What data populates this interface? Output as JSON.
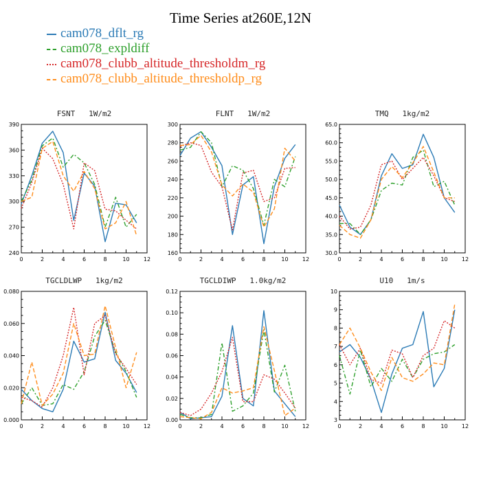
{
  "figure": {
    "title": "Time Series at260E,12N",
    "colors": {
      "series0": "#2a7ab5",
      "series1": "#2ea02c",
      "series2": "#d62728",
      "series3": "#ff8c1a"
    }
  },
  "legend": {
    "items": [
      "cam078_dflt_rg",
      "cam078_expldiff",
      "cam078_clubb_altitude_thresholdm_rg",
      "cam078_clubb_altitude_thresholdp_rg"
    ]
  },
  "chart_data": [
    {
      "type": "line",
      "title": "FSNT   1W/m2",
      "x": [
        0,
        1,
        2,
        3,
        4,
        5,
        6,
        7,
        8,
        9,
        10,
        11
      ],
      "xlim": [
        0,
        12
      ],
      "xticks": [
        "0",
        "2",
        "4",
        "6",
        "8",
        "10",
        "12"
      ],
      "ylim": [
        240,
        390
      ],
      "yticks": [
        "240",
        "270",
        "300",
        "330",
        "360",
        "390"
      ],
      "series": [
        {
          "name": "cam078_dflt_rg",
          "values": [
            297,
            330,
            368,
            382,
            357,
            278,
            333,
            318,
            253,
            298,
            296,
            275
          ]
        },
        {
          "name": "cam078_expldiff",
          "values": [
            300,
            325,
            365,
            374,
            340,
            355,
            345,
            320,
            270,
            305,
            270,
            285
          ]
        },
        {
          "name": "cam078_clubb_altitude_thresholdm_rg",
          "values": [
            292,
            322,
            362,
            350,
            320,
            268,
            345,
            336,
            291,
            289,
            278,
            268
          ]
        },
        {
          "name": "cam078_clubb_altitude_thresholdp_rg",
          "values": [
            300,
            305,
            362,
            370,
            330,
            312,
            335,
            315,
            268,
            275,
            300,
            260
          ]
        }
      ]
    },
    {
      "type": "line",
      "title": "FLNT   1W/m2",
      "x": [
        0,
        1,
        2,
        3,
        4,
        5,
        6,
        7,
        8,
        9,
        10,
        11
      ],
      "xlim": [
        0,
        12
      ],
      "xticks": [
        "0",
        "2",
        "4",
        "6",
        "8",
        "10",
        "12"
      ],
      "ylim": [
        160,
        300
      ],
      "yticks": [
        "160",
        "180",
        "200",
        "220",
        "240",
        "260",
        "280",
        "300"
      ],
      "series": [
        {
          "name": "cam078_dflt_rg",
          "values": [
            266,
            285,
            292,
            275,
            255,
            180,
            234,
            243,
            170,
            232,
            263,
            278
          ]
        },
        {
          "name": "cam078_expldiff",
          "values": [
            272,
            275,
            292,
            280,
            232,
            255,
            250,
            230,
            190,
            240,
            232,
            265
          ]
        },
        {
          "name": "cam078_clubb_altitude_thresholdm_rg",
          "values": [
            276,
            280,
            277,
            248,
            232,
            185,
            247,
            250,
            216,
            220,
            252,
            253
          ]
        },
        {
          "name": "cam078_clubb_altitude_thresholdp_rg",
          "values": [
            277,
            278,
            288,
            270,
            234,
            222,
            235,
            226,
            188,
            208,
            274,
            260
          ]
        }
      ]
    },
    {
      "type": "line",
      "title": "TMQ   1kg/m2",
      "x": [
        0,
        1,
        2,
        3,
        4,
        5,
        6,
        7,
        8,
        9,
        10,
        11
      ],
      "xlim": [
        0,
        12
      ],
      "xticks": [
        "0",
        "2",
        "4",
        "6",
        "8",
        "10",
        "12"
      ],
      "ylim": [
        30,
        65
      ],
      "yticks": [
        "30.0",
        "35.0",
        "40.0",
        "45.0",
        "50.0",
        "55.0",
        "60.0",
        "65.0"
      ],
      "series": [
        {
          "name": "cam078_dflt_rg",
          "values": [
            43,
            37,
            35,
            39,
            51,
            57,
            53,
            54,
            62.3,
            56,
            45,
            41
          ]
        },
        {
          "name": "cam078_expldiff",
          "values": [
            38,
            38,
            35,
            39,
            47,
            49,
            48.5,
            56,
            58,
            48,
            49.5,
            43
          ]
        },
        {
          "name": "cam078_clubb_altitude_thresholdm_rg",
          "values": [
            40,
            36.5,
            37,
            43,
            54,
            55,
            50,
            53,
            56,
            51,
            45,
            44
          ]
        },
        {
          "name": "cam078_clubb_altitude_thresholdp_rg",
          "values": [
            37.5,
            35,
            34,
            39,
            50,
            53.5,
            50.5,
            54.5,
            59,
            52,
            45,
            45
          ]
        }
      ]
    },
    {
      "type": "line",
      "title": "TGCLDLWP   1kg/m2",
      "x": [
        0,
        1,
        2,
        3,
        4,
        5,
        6,
        7,
        8,
        9,
        10,
        11
      ],
      "xlim": [
        0,
        12
      ],
      "xticks": [
        "0",
        "2",
        "4",
        "6",
        "8",
        "10",
        "12"
      ],
      "ylim": [
        0,
        0.08
      ],
      "yticks": [
        "0.000",
        "0.020",
        "0.040",
        "0.060",
        "0.080"
      ],
      "series": [
        {
          "name": "cam078_dflt_rg",
          "values": [
            0.019,
            0.012,
            0.007,
            0.005,
            0.019,
            0.049,
            0.036,
            0.038,
            0.067,
            0.037,
            0.029,
            0.017
          ]
        },
        {
          "name": "cam078_expldiff",
          "values": [
            0.01,
            0.02,
            0.009,
            0.01,
            0.022,
            0.019,
            0.03,
            0.052,
            0.062,
            0.042,
            0.03,
            0.014
          ]
        },
        {
          "name": "cam078_clubb_altitude_thresholdm_rg",
          "values": [
            0.014,
            0.012,
            0.008,
            0.02,
            0.04,
            0.07,
            0.028,
            0.06,
            0.065,
            0.041,
            0.032,
            0.022
          ]
        },
        {
          "name": "cam078_clubb_altitude_thresholdp_rg",
          "values": [
            0.01,
            0.036,
            0.009,
            0.016,
            0.029,
            0.06,
            0.04,
            0.041,
            0.071,
            0.045,
            0.02,
            0.042
          ]
        }
      ]
    },
    {
      "type": "line",
      "title": "TGCLDIWP   1.0kg/m2",
      "x": [
        0,
        1,
        2,
        3,
        4,
        5,
        6,
        7,
        8,
        9,
        10,
        11
      ],
      "xlim": [
        0,
        12
      ],
      "xticks": [
        "0",
        "2",
        "4",
        "6",
        "8",
        "10",
        "12"
      ],
      "ylim": [
        0,
        0.12
      ],
      "yticks": [
        "0.00",
        "0.02",
        "0.04",
        "0.06",
        "0.08",
        "0.10",
        "0.12"
      ],
      "series": [
        {
          "name": "cam078_dflt_rg",
          "values": [
            0.007,
            0.001,
            0.002,
            0.003,
            0.022,
            0.088,
            0.02,
            0.013,
            0.102,
            0.027,
            0.015,
            0.003
          ]
        },
        {
          "name": "cam078_expldiff",
          "values": [
            0.005,
            0.002,
            0.002,
            0.005,
            0.072,
            0.008,
            0.013,
            0.025,
            0.084,
            0.026,
            0.051,
            0.008
          ]
        },
        {
          "name": "cam078_clubb_altitude_thresholdm_rg",
          "values": [
            0.007,
            0.004,
            0.01,
            0.025,
            0.045,
            0.077,
            0.017,
            0.017,
            0.042,
            0.038,
            0.025,
            0.011
          ]
        },
        {
          "name": "cam078_clubb_altitude_thresholdp_rg",
          "values": [
            0.003,
            0.002,
            0.001,
            0.007,
            0.03,
            0.025,
            0.027,
            0.03,
            0.087,
            0.046,
            0.004,
            0.011
          ]
        }
      ]
    },
    {
      "type": "line",
      "title": "U10   1m/s",
      "x": [
        0,
        1,
        2,
        3,
        4,
        5,
        6,
        7,
        8,
        9,
        10,
        11
      ],
      "xlim": [
        0,
        12
      ],
      "xticks": [
        "0",
        "2",
        "4",
        "6",
        "8",
        "10",
        "12"
      ],
      "ylim": [
        3,
        10
      ],
      "yticks": [
        "3",
        "4",
        "5",
        "6",
        "7",
        "8",
        "9",
        "10"
      ],
      "series": [
        {
          "name": "cam078_dflt_rg",
          "values": [
            6.7,
            7.1,
            6.4,
            5.2,
            3.4,
            5.5,
            6.9,
            7.1,
            8.9,
            4.8,
            5.8,
            9.0
          ]
        },
        {
          "name": "cam078_expldiff",
          "values": [
            6.5,
            4.4,
            6.8,
            4.8,
            5.8,
            5.1,
            6.3,
            5.3,
            6.3,
            6.6,
            6.7,
            7.1
          ]
        },
        {
          "name": "cam078_clubb_altitude_thresholdm_rg",
          "values": [
            7.1,
            6.0,
            6.9,
            5.2,
            5.0,
            6.8,
            6.6,
            5.3,
            6.5,
            6.9,
            8.4,
            8.0
          ]
        },
        {
          "name": "cam078_clubb_altitude_thresholdp_rg",
          "values": [
            7.1,
            8.0,
            6.9,
            5.6,
            4.6,
            6.4,
            5.3,
            5.1,
            5.5,
            6.1,
            6.0,
            9.3
          ]
        }
      ]
    }
  ]
}
